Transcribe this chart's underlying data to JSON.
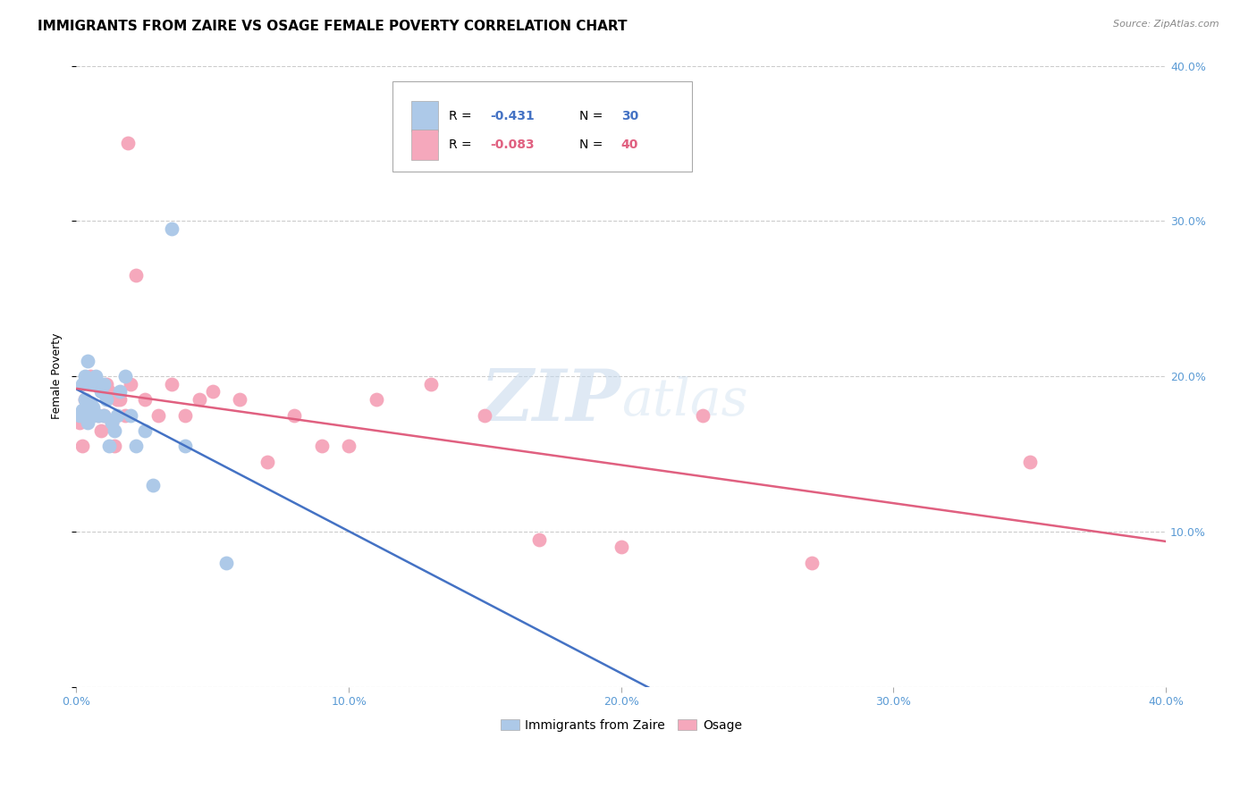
{
  "title": "IMMIGRANTS FROM ZAIRE VS OSAGE FEMALE POVERTY CORRELATION CHART",
  "source": "Source: ZipAtlas.com",
  "ylabel": "Female Poverty",
  "xlim": [
    0.0,
    0.4
  ],
  "ylim": [
    0.0,
    0.4
  ],
  "xticks": [
    0.0,
    0.1,
    0.2,
    0.3,
    0.4
  ],
  "yticks": [
    0.0,
    0.1,
    0.2,
    0.3,
    0.4
  ],
  "xticklabels": [
    "0.0%",
    "10.0%",
    "20.0%",
    "30.0%",
    "40.0%"
  ],
  "yticklabels": [
    "",
    "10.0%",
    "20.0%",
    "30.0%",
    "40.0%"
  ],
  "legend_labels": [
    "Immigrants from Zaire",
    "Osage"
  ],
  "blue_color": "#adc9e8",
  "pink_color": "#f5a8bc",
  "blue_line_color": "#4472c4",
  "pink_line_color": "#e06080",
  "blue_r": -0.431,
  "blue_n": 30,
  "pink_r": -0.083,
  "pink_n": 40,
  "blue_x": [
    0.001,
    0.002,
    0.002,
    0.003,
    0.003,
    0.004,
    0.004,
    0.005,
    0.005,
    0.006,
    0.006,
    0.007,
    0.008,
    0.009,
    0.01,
    0.01,
    0.011,
    0.012,
    0.013,
    0.014,
    0.015,
    0.016,
    0.018,
    0.02,
    0.022,
    0.025,
    0.028,
    0.035,
    0.04,
    0.055
  ],
  "blue_y": [
    0.175,
    0.195,
    0.178,
    0.2,
    0.185,
    0.21,
    0.17,
    0.183,
    0.195,
    0.18,
    0.175,
    0.2,
    0.175,
    0.19,
    0.195,
    0.175,
    0.185,
    0.155,
    0.17,
    0.165,
    0.175,
    0.19,
    0.2,
    0.175,
    0.155,
    0.165,
    0.13,
    0.295,
    0.155,
    0.08
  ],
  "pink_x": [
    0.001,
    0.002,
    0.003,
    0.004,
    0.005,
    0.005,
    0.006,
    0.007,
    0.008,
    0.009,
    0.01,
    0.011,
    0.012,
    0.013,
    0.014,
    0.015,
    0.016,
    0.018,
    0.019,
    0.02,
    0.022,
    0.025,
    0.03,
    0.035,
    0.04,
    0.045,
    0.05,
    0.06,
    0.07,
    0.08,
    0.09,
    0.1,
    0.11,
    0.13,
    0.15,
    0.17,
    0.2,
    0.23,
    0.27,
    0.35
  ],
  "pink_y": [
    0.17,
    0.155,
    0.185,
    0.18,
    0.175,
    0.2,
    0.178,
    0.195,
    0.175,
    0.165,
    0.175,
    0.195,
    0.19,
    0.17,
    0.155,
    0.185,
    0.185,
    0.175,
    0.35,
    0.195,
    0.265,
    0.185,
    0.175,
    0.195,
    0.175,
    0.185,
    0.19,
    0.185,
    0.145,
    0.175,
    0.155,
    0.155,
    0.185,
    0.195,
    0.175,
    0.095,
    0.09,
    0.175,
    0.08,
    0.145
  ],
  "watermark_zip": "ZIP",
  "watermark_atlas": "atlas",
  "background_color": "#ffffff",
  "grid_color": "#cccccc",
  "axis_color": "#5b9bd5",
  "title_fontsize": 11,
  "axis_label_fontsize": 9,
  "tick_fontsize": 9,
  "source_fontsize": 8
}
